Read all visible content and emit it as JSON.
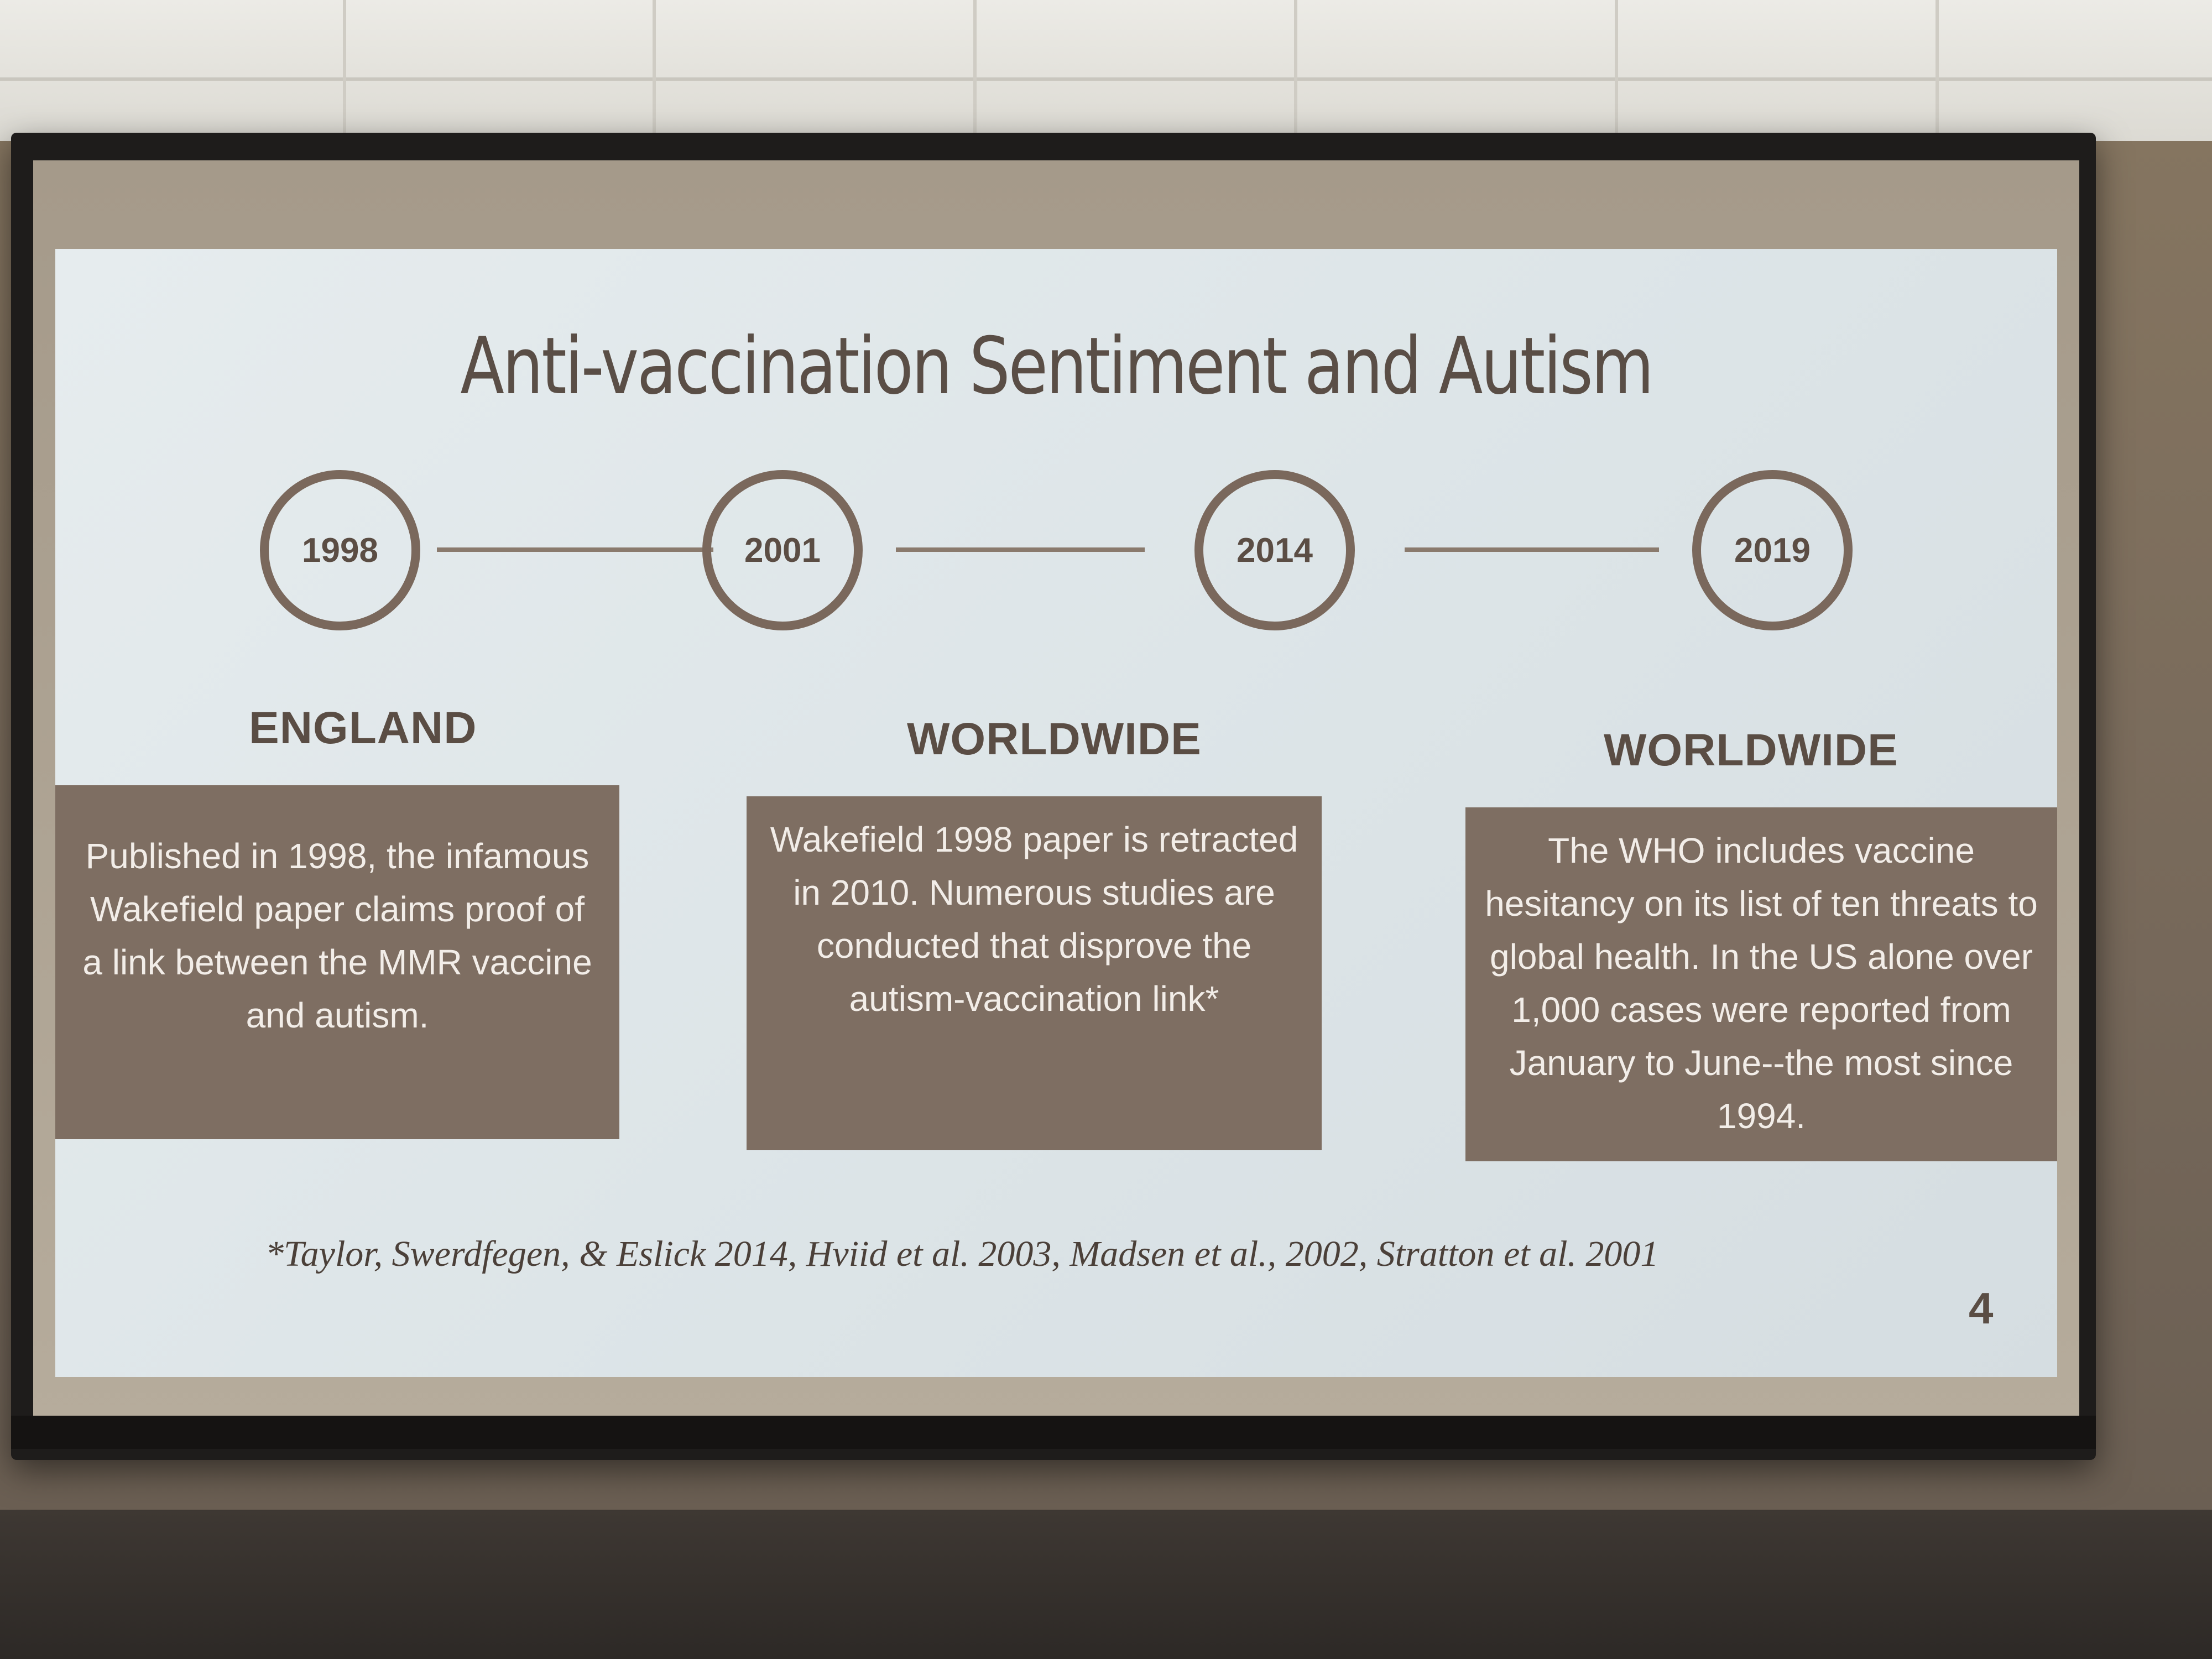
{
  "slide": {
    "title": "Anti-vaccination Sentiment and Autism",
    "timeline": [
      {
        "year": "1998"
      },
      {
        "year": "2001"
      },
      {
        "year": "2014"
      },
      {
        "year": "2019"
      }
    ],
    "events": [
      {
        "region": "ENGLAND",
        "text": "Published in 1998, the infamous Wakefield paper claims proof of a link between the MMR vaccine and autism."
      },
      {
        "region": "WORLDWIDE",
        "text": "Wakefield 1998 paper  is retracted in 2010. Numerous studies are conducted that disprove the autism-vaccination link*"
      },
      {
        "region": "WORLDWIDE",
        "text": "The WHO includes vaccine hesitancy on its list of ten threats to global health. In the US alone over 1,000 cases were reported from January to June--the most since 1994."
      }
    ],
    "footnote": "*Taylor, Swerdfegen, & Eslick 2014, Hviid et al. 2003, Madsen et al., 2002, Stratton et al. 2001",
    "page_number": "4"
  },
  "colors": {
    "slide_bg": "#e3eaec",
    "box_fill": "#7e6e62",
    "title_text": "#5a4e46",
    "circle_stroke": "#7a685c"
  }
}
